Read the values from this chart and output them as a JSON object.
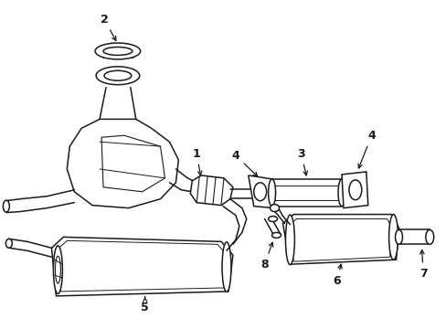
{
  "background_color": "#ffffff",
  "line_color": "#1a1a1a",
  "figsize": [
    4.89,
    3.6
  ],
  "dpi": 100,
  "lw": 1.1
}
